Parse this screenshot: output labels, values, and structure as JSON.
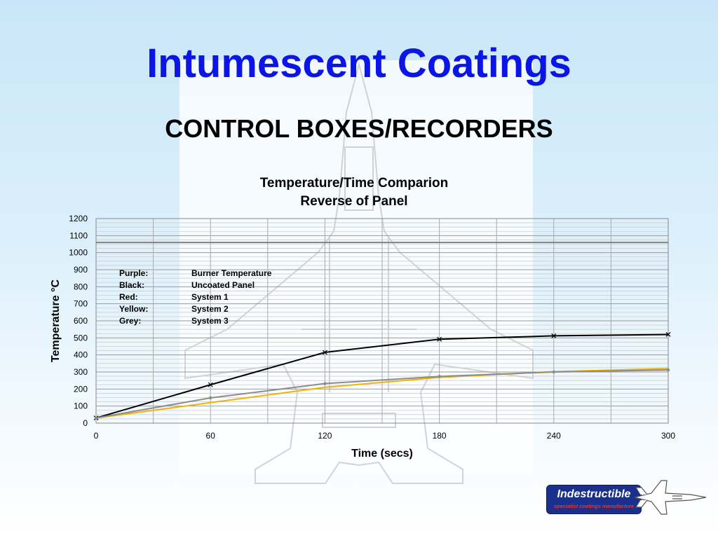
{
  "slide": {
    "title": "Intumescent Coatings",
    "subtitle": "CONTROL BOXES/RECORDERS",
    "background_color": "#c9e6f8",
    "title_color": "#0b16e6"
  },
  "watermark": {
    "icon": "fighter-jet-watermark-icon"
  },
  "legend": [
    {
      "key": "Purple:",
      "value": "Burner Temperature"
    },
    {
      "key": "Black:",
      "value": "Uncoated Panel"
    },
    {
      "key": "Red:",
      "value": "System 1"
    },
    {
      "key": "Yellow:",
      "value": "System 2"
    },
    {
      "key": "Grey:",
      "value": "System 3"
    }
  ],
  "logo": {
    "name": "Indestructible",
    "tagline": "specialist coatings manufacture",
    "icon": "jet-icon",
    "color": "#1b2f8c",
    "tagline_color": "#e23a2a"
  },
  "chart_data": {
    "type": "line",
    "title": "Temperature/Time Comparion",
    "subtitle": "Reverse of Panel",
    "xlabel": "Time (secs)",
    "ylabel": "Temperature °C",
    "xlim": [
      0,
      300
    ],
    "ylim": [
      0,
      1200
    ],
    "xticks": [
      0,
      60,
      120,
      180,
      240,
      300
    ],
    "yticks": [
      0,
      100,
      200,
      300,
      400,
      500,
      600,
      700,
      800,
      900,
      1000,
      1100,
      1200
    ],
    "grid": true,
    "series": [
      {
        "color": "#808080",
        "marker": "none",
        "x": [
          0,
          300
        ],
        "y": [
          1060,
          1060
        ]
      },
      {
        "color": "#000000",
        "marker": "x",
        "x": [
          0,
          60,
          120,
          180,
          240,
          300
        ],
        "y": [
          30,
          225,
          415,
          492,
          512,
          520
        ]
      },
      {
        "color": "#f0b400",
        "marker": "none",
        "x": [
          0,
          60,
          120,
          180,
          240,
          300
        ],
        "y": [
          30,
          120,
          210,
          268,
          302,
          320
        ]
      },
      {
        "color": "#8c8c8c",
        "marker": "dot",
        "x": [
          0,
          60,
          120,
          180,
          240,
          300
        ],
        "y": [
          30,
          148,
          232,
          274,
          300,
          312
        ]
      }
    ]
  }
}
